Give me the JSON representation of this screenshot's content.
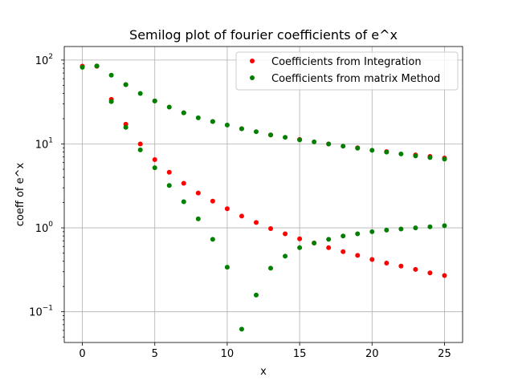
{
  "chart_data": {
    "type": "scatter",
    "title": "Semilog plot of fourier coefficients of e^x",
    "xlabel": "x",
    "ylabel": "coeff of e^x",
    "xlim": [
      -1.25,
      26.25
    ],
    "ylim": [
      0.043,
      145
    ],
    "yscale": "log",
    "grid": true,
    "legend_position": "upper-right",
    "x_ticks": [
      {
        "value": 0,
        "label": "0"
      },
      {
        "value": 5,
        "label": "5"
      },
      {
        "value": 10,
        "label": "10"
      },
      {
        "value": 15,
        "label": "15"
      },
      {
        "value": 20,
        "label": "20"
      },
      {
        "value": 25,
        "label": "25"
      }
    ],
    "y_ticks": [
      {
        "value": 0.1,
        "base": "10",
        "exp": "−1"
      },
      {
        "value": 1,
        "base": "10",
        "exp": "0"
      },
      {
        "value": 10,
        "base": "10",
        "exp": "1"
      },
      {
        "value": 100,
        "base": "10",
        "exp": "2"
      }
    ],
    "series": [
      {
        "name": "Coefficients from Integration",
        "color": "#ff0000",
        "points": [
          [
            0,
            84.5
          ],
          [
            1,
            84.7
          ],
          [
            2,
            34.0
          ],
          [
            3,
            17.2
          ],
          [
            4,
            10.0
          ],
          [
            5,
            6.5
          ],
          [
            6,
            4.6
          ],
          [
            7,
            3.4
          ],
          [
            8,
            2.6
          ],
          [
            9,
            2.08
          ],
          [
            10,
            1.69
          ],
          [
            11,
            1.38
          ],
          [
            12,
            1.16
          ],
          [
            13,
            0.98
          ],
          [
            14,
            0.85
          ],
          [
            15,
            0.74
          ],
          [
            16,
            0.66
          ],
          [
            17,
            0.58
          ],
          [
            18,
            0.52
          ],
          [
            19,
            0.47
          ],
          [
            20,
            0.42
          ],
          [
            21,
            0.38
          ],
          [
            22,
            0.35
          ],
          [
            23,
            0.32
          ],
          [
            24,
            0.29
          ],
          [
            25,
            0.27
          ],
          [
            1,
            84.4
          ],
          [
            3,
            51.0
          ],
          [
            5,
            32.5
          ],
          [
            7,
            23.5
          ],
          [
            9,
            18.5
          ],
          [
            11,
            15.2
          ],
          [
            13,
            12.8
          ],
          [
            15,
            11.3
          ],
          [
            17,
            10.0
          ],
          [
            19,
            9.0
          ],
          [
            21,
            8.1
          ],
          [
            23,
            7.4
          ],
          [
            24,
            7.1
          ],
          [
            25,
            6.8
          ]
        ]
      },
      {
        "name": "Coefficients from matrix Method",
        "color": "#008000",
        "points": [
          [
            0,
            82.0
          ],
          [
            1,
            85.0
          ],
          [
            2,
            66.0
          ],
          [
            3,
            51.0
          ],
          [
            4,
            40.0
          ],
          [
            5,
            32.5
          ],
          [
            6,
            27.5
          ],
          [
            7,
            23.5
          ],
          [
            8,
            20.5
          ],
          [
            9,
            18.5
          ],
          [
            10,
            16.8
          ],
          [
            11,
            15.2
          ],
          [
            12,
            14.0
          ],
          [
            13,
            12.8
          ],
          [
            14,
            12.0
          ],
          [
            15,
            11.2
          ],
          [
            16,
            10.6
          ],
          [
            17,
            10.0
          ],
          [
            18,
            9.4
          ],
          [
            19,
            8.9
          ],
          [
            20,
            8.4
          ],
          [
            21,
            8.0
          ],
          [
            22,
            7.6
          ],
          [
            23,
            7.2
          ],
          [
            24,
            6.9
          ],
          [
            25,
            6.6
          ],
          [
            2,
            32.0
          ],
          [
            3,
            15.8
          ],
          [
            4,
            8.5
          ],
          [
            5,
            5.2
          ],
          [
            6,
            3.2
          ],
          [
            7,
            2.05
          ],
          [
            8,
            1.28
          ],
          [
            9,
            0.73
          ],
          [
            10,
            0.34
          ],
          [
            11,
            0.062
          ],
          [
            12,
            0.158
          ],
          [
            13,
            0.33
          ],
          [
            14,
            0.46
          ],
          [
            15,
            0.58
          ],
          [
            16,
            0.66
          ],
          [
            17,
            0.73
          ],
          [
            18,
            0.8
          ],
          [
            19,
            0.85
          ],
          [
            20,
            0.9
          ],
          [
            21,
            0.94
          ],
          [
            22,
            0.97
          ],
          [
            23,
            1.0
          ],
          [
            24,
            1.03
          ],
          [
            25,
            1.06
          ]
        ]
      }
    ]
  }
}
